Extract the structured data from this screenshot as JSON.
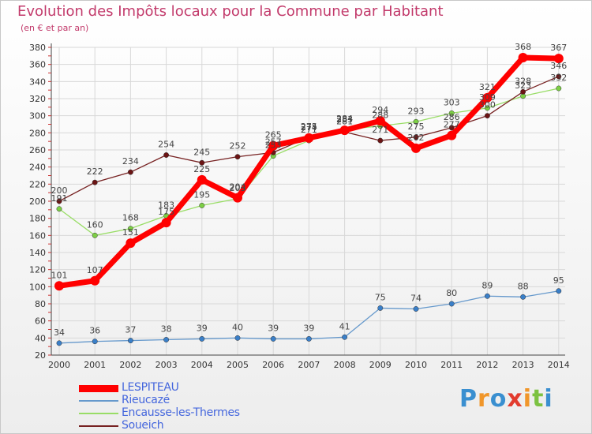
{
  "chart_data": {
    "type": "line",
    "title": "Evolution des Impôts locaux pour la Commune par Habitant",
    "subtitle": "(en € et par an)",
    "xlabel": "",
    "ylabel": "",
    "x": [
      "2000",
      "2001",
      "2002",
      "2003",
      "2004",
      "2005",
      "2006",
      "2007",
      "2008",
      "2009",
      "2010",
      "2011",
      "2012",
      "2013",
      "2014"
    ],
    "y_ticks": [
      "20",
      "40",
      "60",
      "80",
      "100",
      "120",
      "140",
      "160",
      "180",
      "200",
      "220",
      "240",
      "260",
      "280",
      "300",
      "320",
      "340",
      "360",
      "380"
    ],
    "ylim": [
      20,
      380
    ],
    "grid": true,
    "legend_position": "bottom-left",
    "series": [
      {
        "name": "LESPITEAU",
        "color": "#ff0000",
        "values": [
          101,
          107,
          151,
          175,
          225,
          204,
          265,
          274,
          283,
          294,
          262,
          277,
          321,
          368,
          367
        ]
      },
      {
        "name": "Rieucazé",
        "color": "#6699cc",
        "values": [
          34,
          36,
          37,
          38,
          39,
          40,
          39,
          39,
          41,
          75,
          74,
          80,
          89,
          88,
          95
        ]
      },
      {
        "name": "Encausse-les-Thermes",
        "color": "#99dd66",
        "values": [
          191,
          160,
          168,
          183,
          195,
          203,
          253,
          271,
          284,
          288,
          293,
          303,
          309,
          323,
          332
        ]
      },
      {
        "name": "Soueich",
        "color": "#772222",
        "values": [
          200,
          222,
          234,
          254,
          245,
          252,
          257,
          275,
          281,
          271,
          275,
          286,
          300,
          328,
          346
        ]
      }
    ]
  },
  "legend": {
    "items": [
      {
        "label": "LESPITEAU",
        "color": "#4466dd"
      },
      {
        "label": "Rieucazé",
        "color": "#4466dd"
      },
      {
        "label": "Encausse-les-Thermes",
        "color": "#4466dd"
      },
      {
        "label": "Soueich",
        "color": "#4466dd"
      }
    ]
  },
  "branding": {
    "logo_text": "Proxiti",
    "logo_colors": [
      "#3a8fd0",
      "#f0962a",
      "#3a8fd0",
      "#e23b2e",
      "#f0962a",
      "#7cc242",
      "#3a8fd0"
    ]
  }
}
